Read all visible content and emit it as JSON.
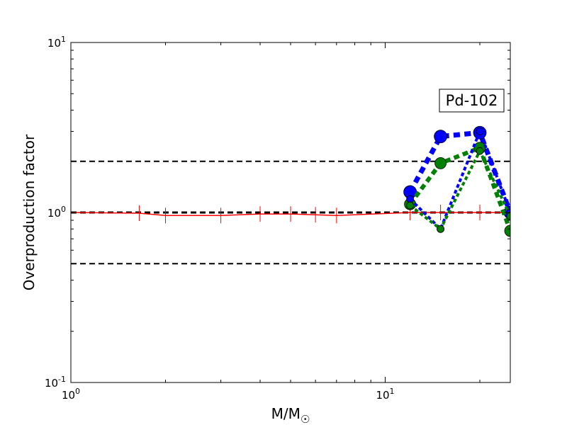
{
  "chart_data": {
    "type": "line",
    "xscale": "log",
    "yscale": "log",
    "xlim": [
      1,
      25
    ],
    "ylim": [
      0.1,
      10
    ],
    "xlabel_main": "M/M",
    "xlabel_sub": "☉",
    "ylabel": "Overproduction factor",
    "annotation": "Pd-102",
    "x_ticks": [
      {
        "value": 1,
        "base": "10",
        "exp": "0"
      },
      {
        "value": 10,
        "base": "10",
        "exp": "1"
      }
    ],
    "y_ticks": [
      {
        "value": 0.1,
        "base": "10",
        "exp": "-1"
      },
      {
        "value": 1,
        "base": "10",
        "exp": "0"
      },
      {
        "value": 10,
        "base": "10",
        "exp": "1"
      }
    ],
    "reference_lines": [
      0.5,
      1.0,
      2.0
    ],
    "colors": {
      "red": "#ff0000",
      "blue": "#0000ff",
      "green": "#008000",
      "ref": "#000000"
    },
    "series": [
      {
        "color": "red",
        "style": "solid",
        "width": 1.5,
        "marker": "vline",
        "x": [
          1.0,
          1.65,
          2.0,
          3.0,
          4.0,
          5.0,
          6.0,
          7.0,
          12.0,
          15.0,
          20.0,
          25.0
        ],
        "y": [
          1.0,
          0.99,
          0.96,
          0.96,
          0.98,
          0.98,
          0.97,
          0.96,
          1.0,
          1.0,
          1.0,
          1.0
        ]
      },
      {
        "color": "blue",
        "style": "dotted",
        "width": 7,
        "marker": "circle",
        "marker_r": 9,
        "x": [
          12.0,
          15.0,
          20.0,
          25.0
        ],
        "y": [
          1.32,
          2.8,
          2.95,
          1.0
        ]
      },
      {
        "color": "green",
        "style": "dotted",
        "width": 6,
        "marker": "circle",
        "marker_r": 8,
        "x": [
          12.0,
          15.0,
          20.0,
          25.0
        ],
        "y": [
          1.12,
          1.95,
          2.4,
          0.78
        ]
      },
      {
        "color": "blue",
        "style": "dotted",
        "width": 4,
        "marker": "circle",
        "marker_r": 5,
        "x": [
          12.0,
          15.0,
          20.0,
          25.0
        ],
        "y": [
          1.2,
          0.8,
          3.0,
          1.0
        ]
      },
      {
        "color": "green",
        "style": "dotted",
        "width": 4,
        "marker": "circle",
        "marker_r": 5,
        "x": [
          12.0,
          15.0,
          20.0,
          25.0
        ],
        "y": [
          1.1,
          0.8,
          2.3,
          0.95
        ]
      }
    ]
  }
}
